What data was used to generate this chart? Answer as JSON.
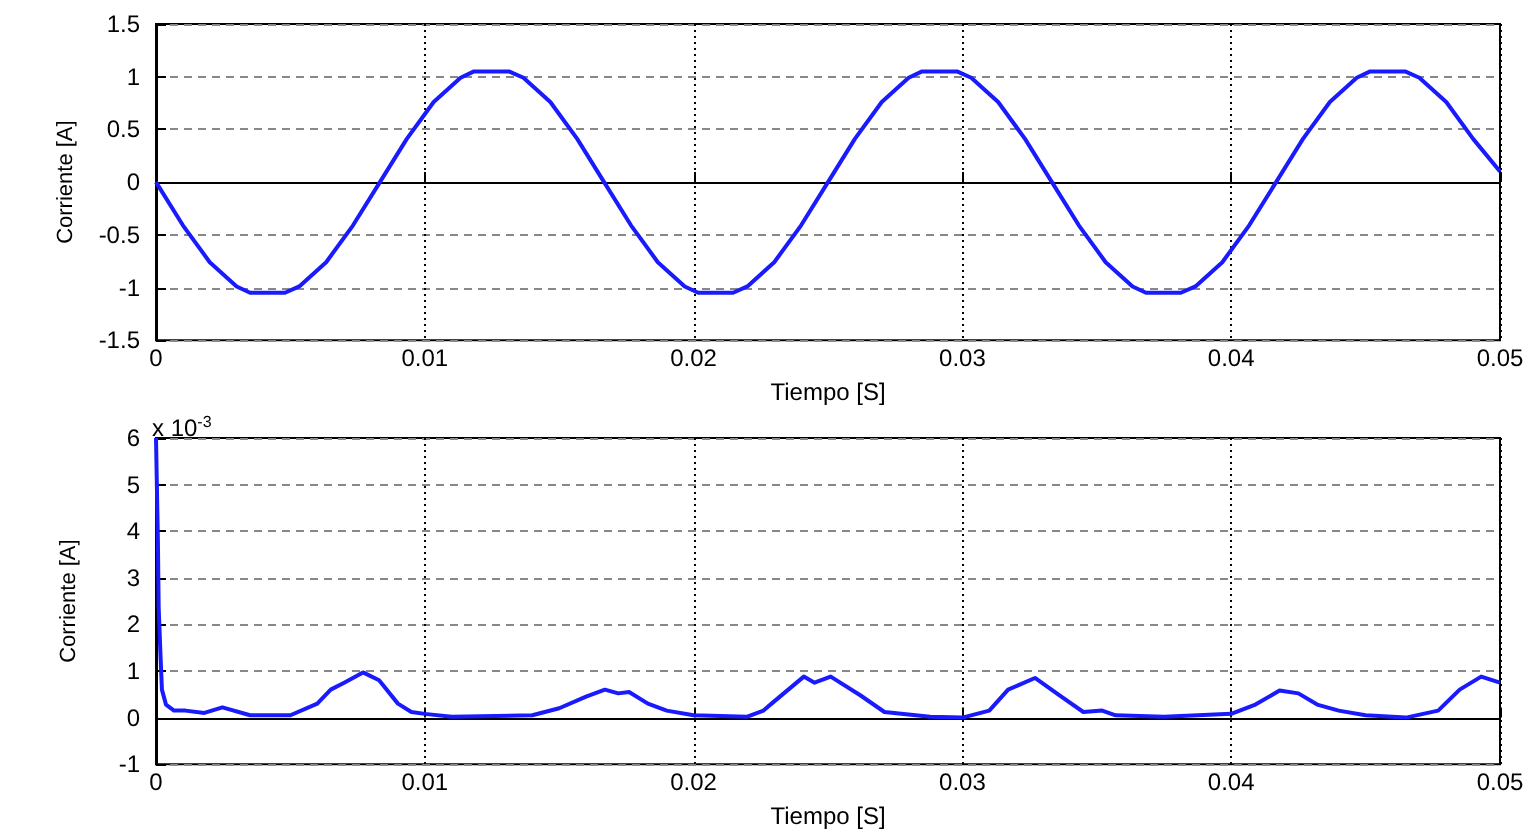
{
  "chart_data": [
    {
      "type": "line",
      "xlabel": "Tiempo [S]",
      "ylabel": "Corriente [A]",
      "xlim": [
        0,
        0.05
      ],
      "xticks": [
        0,
        0.01,
        0.02,
        0.03,
        0.04,
        0.05
      ],
      "ylim": [
        -1.5,
        1.5
      ],
      "yticks": [
        -1.5,
        -1,
        -0.5,
        0,
        0.5,
        1,
        1.5
      ],
      "grid": true,
      "marker": "none",
      "line_style": "solid",
      "series": [
        {
          "color": "#1a1aff",
          "x": [
            0,
            0.001,
            0.002,
            0.003,
            0.0035,
            0.0048,
            0.00533,
            0.00633,
            0.00733,
            0.00833,
            0.00933,
            0.01033,
            0.01133,
            0.01183,
            0.01313,
            0.01367,
            0.01467,
            0.01567,
            0.01667,
            0.01767,
            0.01867,
            0.01967,
            0.02017,
            0.02147,
            0.022,
            0.023,
            0.024,
            0.025,
            0.026,
            0.027,
            0.028,
            0.0285,
            0.0298,
            0.03033,
            0.03133,
            0.03233,
            0.03333,
            0.03433,
            0.03533,
            0.03633,
            0.03683,
            0.03813,
            0.03867,
            0.03967,
            0.04067,
            0.04167,
            0.04267,
            0.04367,
            0.04467,
            0.04517,
            0.04647,
            0.047,
            0.048,
            0.049,
            0.05
          ],
          "values": [
            0,
            -0.41,
            -0.76,
            -0.99,
            -1.05,
            -1.05,
            -0.99,
            -0.76,
            -0.41,
            0,
            0.41,
            0.76,
            0.99,
            1.05,
            1.05,
            0.99,
            0.76,
            0.41,
            0,
            -0.41,
            -0.76,
            -0.99,
            -1.05,
            -1.05,
            -0.99,
            -0.76,
            -0.41,
            0,
            0.41,
            0.76,
            0.99,
            1.05,
            1.05,
            0.99,
            0.76,
            0.41,
            0,
            -0.41,
            -0.76,
            -0.99,
            -1.05,
            -1.05,
            -0.99,
            -0.76,
            -0.41,
            0,
            0.41,
            0.76,
            0.99,
            1.05,
            1.05,
            0.99,
            0.76,
            0.41,
            0.1
          ]
        }
      ]
    },
    {
      "type": "line",
      "xlabel": "Tiempo [S]",
      "ylabel": "Corriente [A]",
      "xlim": [
        0,
        0.05
      ],
      "xticks": [
        0,
        0.01,
        0.02,
        0.03,
        0.04,
        0.05
      ],
      "ylim": [
        -1,
        6
      ],
      "yticks": [
        -1,
        0,
        1,
        2,
        3,
        4,
        5,
        6
      ],
      "grid": true,
      "marker": "none",
      "line_style": "solid",
      "annotations": [
        "x 10$^{-3}$"
      ],
      "series": [
        {
          "color": "#1a1aff",
          "x": [
            0,
            7e-05,
            0.0001,
            0.00017,
            0.00022,
            0.00037,
            0.00067,
            0.0011,
            0.0018,
            0.00247,
            0.0035,
            0.005,
            0.006,
            0.0065,
            0.007,
            0.0077,
            0.0083,
            0.009,
            0.0095,
            0.01,
            0.011,
            0.014,
            0.015,
            0.016,
            0.0167,
            0.0172,
            0.0176,
            0.0183,
            0.019,
            0.02,
            0.022,
            0.0226,
            0.0229,
            0.0241,
            0.0245,
            0.0251,
            0.0262,
            0.0271,
            0.0288,
            0.03,
            0.031,
            0.0317,
            0.0327,
            0.0336,
            0.0345,
            0.0352,
            0.0357,
            0.0375,
            0.04,
            0.0409,
            0.0418,
            0.0425,
            0.0432,
            0.044,
            0.045,
            0.0465,
            0.0477,
            0.0485,
            0.0493,
            0.05
          ],
          "values": [
            6,
            3.8,
            2.35,
            1.3,
            0.6,
            0.28,
            0.15,
            0.15,
            0.1,
            0.22,
            0.05,
            0.05,
            0.3,
            0.6,
            0.75,
            0.97,
            0.8,
            0.3,
            0.12,
            0.08,
            0.02,
            0.05,
            0.2,
            0.45,
            0.6,
            0.52,
            0.55,
            0.3,
            0.15,
            0.05,
            0.02,
            0.15,
            0.3,
            0.88,
            0.75,
            0.88,
            0.48,
            0.12,
            0.02,
            0,
            0.15,
            0.6,
            0.85,
            0.48,
            0.12,
            0.15,
            0.05,
            0.02,
            0.08,
            0.28,
            0.58,
            0.52,
            0.28,
            0.15,
            0.05,
            0,
            0.15,
            0.6,
            0.88,
            0.75
          ]
        }
      ]
    }
  ]
}
